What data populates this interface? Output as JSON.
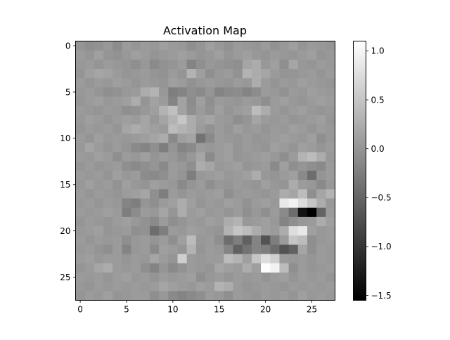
{
  "chart_data": {
    "type": "heatmap",
    "title": "Activation Map",
    "colormap": "gray",
    "rows": 28,
    "cols": 28,
    "vmin": -1.55,
    "vmax": 1.1,
    "x_ticks": [
      0,
      5,
      10,
      15,
      20,
      25
    ],
    "y_ticks": [
      0,
      5,
      10,
      15,
      20,
      25
    ],
    "x_tick_labels": [
      "0",
      "5",
      "10",
      "15",
      "20",
      "25"
    ],
    "y_tick_labels": [
      "0",
      "5",
      "10",
      "15",
      "20",
      "25"
    ],
    "colorbar_ticks": [
      1.0,
      0.5,
      0.0,
      -0.5,
      -1.0,
      -1.5
    ],
    "colorbar_tick_labels": [
      "1.0",
      "0.5",
      "0.0",
      "−0.5",
      "−1.0",
      "−1.5"
    ],
    "values": [
      [
        0.0,
        -0.06,
        -0.03,
        0.03,
        -0.09,
        0.06,
        0.0,
        0.06,
        0.03,
        0.1,
        0.06,
        0.03,
        -0.06,
        0.0,
        0.1,
        0.03,
        -0.03,
        0.06,
        0.03,
        0.0,
        0.06,
        -0.03,
        0.03,
        0.1,
        0.0,
        0.06,
        0.03,
        0.0
      ],
      [
        0.06,
        0.0,
        0.1,
        0.0,
        -0.03,
        0.03,
        0.1,
        0.06,
        0.0,
        0.03,
        0.06,
        0.1,
        0.06,
        0.0,
        0.03,
        0.1,
        0.0,
        0.06,
        0.1,
        0.03,
        0.0,
        0.06,
        0.03,
        0.0,
        0.06,
        0.1,
        0.0,
        0.03
      ],
      [
        0.03,
        0.06,
        0.0,
        0.06,
        0.03,
        0.0,
        -0.06,
        0.03,
        -0.12,
        -0.03,
        0.0,
        0.06,
        -0.18,
        -0.06,
        0.03,
        0.0,
        -0.03,
        -0.06,
        0.16,
        0.24,
        0.03,
        0.1,
        -0.06,
        0.16,
        0.03,
        0.0,
        0.06,
        0.03
      ],
      [
        0.0,
        0.1,
        0.16,
        0.13,
        0.06,
        0.0,
        0.03,
        0.06,
        0.0,
        -0.03,
        0.06,
        0.0,
        0.31,
        0.1,
        -0.06,
        0.03,
        0.06,
        -0.03,
        0.31,
        0.24,
        0.16,
        0.06,
        0.0,
        0.0,
        0.03,
        0.06,
        0.0,
        0.06
      ],
      [
        0.06,
        0.0,
        0.06,
        0.03,
        0.1,
        0.06,
        0.0,
        0.06,
        0.03,
        0.0,
        0.1,
        0.06,
        -0.03,
        0.03,
        0.06,
        0.03,
        0.0,
        0.06,
        0.03,
        0.24,
        0.06,
        0.0,
        0.06,
        0.03,
        0.1,
        0.06,
        0.03,
        0.0
      ],
      [
        0.03,
        0.06,
        0.0,
        -0.06,
        -0.03,
        0.03,
        0.06,
        0.24,
        0.31,
        0.03,
        -0.24,
        -0.18,
        -0.06,
        -0.12,
        0.0,
        -0.18,
        -0.12,
        -0.09,
        -0.18,
        -0.09,
        0.06,
        0.03,
        -0.03,
        0.06,
        0.03,
        0.1,
        0.06,
        0.03
      ],
      [
        0.0,
        0.06,
        0.1,
        0.03,
        0.06,
        0.1,
        0.24,
        0.0,
        0.13,
        0.06,
        -0.18,
        0.13,
        -0.09,
        0.1,
        -0.06,
        0.06,
        0.03,
        0.0,
        0.06,
        0.03,
        -0.06,
        0.06,
        0.1,
        0.03,
        0.0,
        0.06,
        0.1,
        0.06
      ],
      [
        0.06,
        0.03,
        0.0,
        0.06,
        0.03,
        -0.06,
        -0.03,
        0.03,
        0.1,
        0.31,
        0.45,
        0.13,
        -0.06,
        0.06,
        -0.03,
        0.1,
        0.0,
        0.06,
        0.1,
        0.4,
        0.24,
        0.06,
        0.0,
        0.06,
        0.1,
        0.03,
        0.0,
        0.03
      ],
      [
        0.03,
        0.1,
        0.06,
        0.0,
        0.06,
        0.1,
        0.06,
        0.16,
        0.03,
        0.16,
        0.31,
        0.5,
        0.24,
        0.1,
        0.16,
        0.06,
        0.03,
        -0.06,
        0.0,
        0.16,
        0.06,
        0.03,
        0.06,
        0.0,
        0.03,
        0.06,
        0.1,
        0.0
      ],
      [
        0.0,
        0.06,
        0.03,
        0.06,
        0.0,
        0.16,
        0.24,
        0.16,
        0.1,
        0.06,
        0.4,
        0.31,
        0.24,
        0.06,
        -0.03,
        0.06,
        0.0,
        0.1,
        0.03,
        0.06,
        0.0,
        0.06,
        0.03,
        0.1,
        0.06,
        0.0,
        0.06,
        0.03
      ],
      [
        0.06,
        0.0,
        0.1,
        0.03,
        0.06,
        0.03,
        0.06,
        0.1,
        0.16,
        0.24,
        -0.12,
        0.1,
        0.16,
        -0.36,
        -0.12,
        0.06,
        0.03,
        0.0,
        0.06,
        0.0,
        0.03,
        0.06,
        0.1,
        0.06,
        0.03,
        0.1,
        -0.06,
        0.03
      ],
      [
        0.03,
        0.16,
        0.06,
        0.0,
        0.06,
        0.0,
        -0.12,
        -0.18,
        -0.06,
        -0.24,
        0.0,
        -0.18,
        -0.12,
        0.06,
        0.03,
        0.06,
        0.1,
        0.0,
        0.06,
        0.03,
        0.0,
        0.1,
        0.06,
        0.0,
        0.1,
        0.06,
        0.0,
        0.06
      ],
      [
        0.06,
        0.03,
        0.1,
        0.06,
        -0.06,
        0.06,
        0.03,
        0.1,
        0.0,
        0.06,
        0.03,
        -0.06,
        0.03,
        0.16,
        -0.12,
        0.06,
        0.1,
        0.0,
        0.03,
        0.06,
        0.1,
        0.03,
        -0.06,
        0.06,
        0.31,
        0.4,
        0.24,
        0.03
      ],
      [
        0.0,
        0.06,
        0.0,
        0.03,
        0.06,
        -0.06,
        -0.12,
        -0.06,
        0.0,
        -0.12,
        0.06,
        0.03,
        -0.06,
        0.24,
        0.16,
        0.03,
        0.06,
        0.1,
        0.0,
        0.03,
        0.06,
        -0.12,
        0.1,
        -0.06,
        0.0,
        -0.06,
        -0.12,
        0.06
      ],
      [
        0.06,
        0.03,
        0.06,
        0.0,
        0.1,
        0.03,
        0.06,
        -0.09,
        -0.12,
        -0.06,
        0.06,
        0.0,
        -0.24,
        0.03,
        0.06,
        0.1,
        0.03,
        0.06,
        0.1,
        0.24,
        0.03,
        0.0,
        0.06,
        0.1,
        -0.12,
        -0.42,
        0.0,
        0.06
      ],
      [
        0.03,
        0.1,
        0.03,
        0.06,
        -0.03,
        0.1,
        0.03,
        0.0,
        0.1,
        0.06,
        0.03,
        -0.12,
        0.0,
        0.06,
        -0.06,
        0.03,
        0.0,
        0.06,
        0.03,
        0.0,
        0.1,
        0.03,
        0.0,
        0.24,
        0.06,
        0.03,
        -0.12,
        0.03
      ],
      [
        0.06,
        0.0,
        0.06,
        0.03,
        0.0,
        0.06,
        0.1,
        0.16,
        -0.06,
        -0.24,
        0.06,
        0.0,
        0.06,
        0.03,
        0.06,
        0.1,
        -0.06,
        0.03,
        0.06,
        0.03,
        0.0,
        0.06,
        0.24,
        0.16,
        0.4,
        -0.06,
        0.16,
        0.31
      ],
      [
        0.03,
        0.06,
        0.0,
        0.06,
        0.03,
        -0.18,
        -0.24,
        0.0,
        -0.06,
        0.06,
        0.1,
        0.24,
        0.1,
        0.0,
        0.06,
        0.03,
        0.1,
        0.06,
        -0.03,
        0.06,
        0.1,
        0.03,
        0.86,
        0.96,
        0.75,
        0.5,
        0.24,
        0.03
      ],
      [
        0.06,
        0.03,
        0.06,
        0.1,
        0.06,
        -0.24,
        -0.09,
        0.06,
        0.03,
        0.16,
        0.0,
        0.24,
        0.06,
        0.1,
        0.03,
        0.06,
        0.0,
        0.06,
        -0.06,
        0.03,
        -0.06,
        0.06,
        -0.12,
        -0.42,
        -1.35,
        -1.55,
        -0.51,
        0.06
      ],
      [
        0.0,
        0.06,
        0.03,
        0.0,
        0.06,
        0.1,
        0.03,
        -0.03,
        -0.12,
        0.06,
        -0.06,
        0.0,
        0.06,
        0.03,
        0.1,
        0.06,
        0.24,
        0.31,
        0.03,
        0.06,
        0.1,
        0.03,
        -0.18,
        -0.06,
        0.03,
        0.06,
        0.24,
        0.1
      ],
      [
        0.03,
        0.06,
        0.1,
        0.0,
        0.03,
        0.06,
        -0.06,
        -0.03,
        -0.42,
        -0.24,
        0.06,
        0.03,
        0.1,
        0.06,
        0.03,
        0.0,
        0.31,
        0.5,
        0.4,
        0.24,
        0.1,
        0.06,
        0.24,
        0.75,
        0.86,
        0.1,
        0.03,
        0.06
      ],
      [
        0.06,
        0.0,
        0.06,
        0.03,
        0.06,
        -0.06,
        0.03,
        0.06,
        0.0,
        0.06,
        -0.06,
        0.1,
        0.4,
        0.03,
        0.06,
        -0.06,
        -0.42,
        -0.24,
        -0.54,
        -0.18,
        -0.69,
        -0.24,
        0.06,
        0.5,
        0.4,
        -0.06,
        0.03,
        0.06
      ],
      [
        0.03,
        0.06,
        0.0,
        -0.06,
        0.06,
        -0.18,
        0.03,
        0.06,
        -0.12,
        0.1,
        0.06,
        0.0,
        0.31,
        0.0,
        0.06,
        0.03,
        -0.18,
        -0.54,
        -0.36,
        -0.18,
        -0.24,
        -0.42,
        -0.69,
        -0.54,
        0.16,
        -0.06,
        0.06,
        0.03
      ],
      [
        0.06,
        0.1,
        0.03,
        0.06,
        0.06,
        0.0,
        0.06,
        0.03,
        0.16,
        0.06,
        0.0,
        0.6,
        0.06,
        0.03,
        0.06,
        0.06,
        0.4,
        0.31,
        0.1,
        0.5,
        0.75,
        0.6,
        0.06,
        0.03,
        0.06,
        0.0,
        0.06,
        0.03
      ],
      [
        0.0,
        0.06,
        0.16,
        0.24,
        0.06,
        0.03,
        0.06,
        -0.06,
        -0.18,
        0.0,
        -0.12,
        -0.03,
        0.06,
        0.03,
        0.0,
        0.16,
        0.1,
        0.06,
        0.24,
        0.1,
        1.08,
        0.96,
        0.4,
        -0.06,
        0.06,
        0.0,
        0.03,
        0.06
      ],
      [
        0.06,
        0.03,
        0.06,
        0.0,
        0.06,
        0.1,
        0.03,
        0.06,
        0.0,
        0.06,
        0.03,
        0.06,
        0.1,
        -0.06,
        0.03,
        0.06,
        0.0,
        0.06,
        0.03,
        0.06,
        0.0,
        0.06,
        0.1,
        0.0,
        0.06,
        0.03,
        0.06,
        0.0
      ],
      [
        0.03,
        0.0,
        0.06,
        0.03,
        0.06,
        0.03,
        0.06,
        0.03,
        0.06,
        0.16,
        0.1,
        0.06,
        0.03,
        0.1,
        0.06,
        0.31,
        0.24,
        0.06,
        0.0,
        0.03,
        0.06,
        0.03,
        0.0,
        0.06,
        0.03,
        0.06,
        0.03,
        0.06
      ],
      [
        0.0,
        0.06,
        0.03,
        0.1,
        0.0,
        0.03,
        0.06,
        0.06,
        -0.06,
        0.03,
        -0.12,
        -0.18,
        -0.12,
        -0.06,
        0.06,
        0.03,
        -0.06,
        0.06,
        0.03,
        0.0,
        0.06,
        0.03,
        0.06,
        0.0,
        0.1,
        0.03,
        0.06,
        0.03
      ]
    ]
  }
}
